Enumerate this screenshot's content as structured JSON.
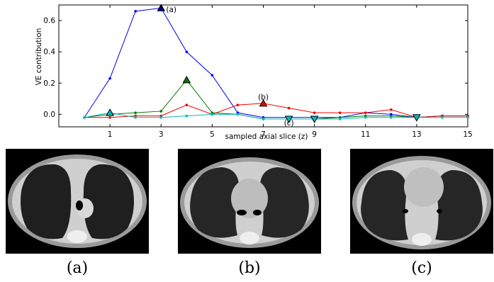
{
  "chart_data": {
    "type": "line",
    "xlabel": "sampled axial slice (z)",
    "ylabel": "VE contribution",
    "xlim": [
      -1,
      15
    ],
    "ylim": [
      -0.08,
      0.7
    ],
    "xticks": [
      1,
      3,
      5,
      7,
      9,
      11,
      13,
      15
    ],
    "yticks": [
      0.0,
      0.2,
      0.4,
      0.6
    ],
    "ytick_labels": [
      "0.0",
      "0.2",
      "0.4",
      "0.6"
    ],
    "x": [
      0,
      1,
      2,
      3,
      4,
      5,
      6,
      7,
      8,
      9,
      10,
      11,
      12,
      13,
      14,
      15
    ],
    "series": [
      {
        "color": "#0000ee",
        "values": [
          -0.02,
          0.23,
          0.66,
          0.68,
          0.4,
          0.25,
          0.01,
          -0.02,
          -0.02,
          -0.02,
          -0.02,
          0.01,
          0.0,
          -0.02,
          -0.01,
          -0.01
        ]
      },
      {
        "color": "#007700",
        "values": [
          -0.02,
          0.0,
          0.01,
          0.02,
          0.22,
          0.01,
          0.0,
          -0.03,
          -0.03,
          -0.03,
          -0.02,
          -0.01,
          -0.01,
          -0.02,
          -0.01,
          -0.01
        ]
      },
      {
        "color": "#ee0000",
        "values": [
          -0.02,
          -0.02,
          -0.01,
          -0.01,
          0.06,
          0.0,
          0.06,
          0.07,
          0.04,
          0.01,
          0.01,
          0.01,
          0.03,
          -0.02,
          -0.01,
          -0.01
        ]
      },
      {
        "color": "#00bbbb",
        "values": [
          -0.02,
          0.01,
          -0.02,
          -0.02,
          -0.01,
          0.0,
          0.0,
          -0.03,
          -0.03,
          -0.03,
          -0.03,
          -0.02,
          -0.02,
          -0.02,
          -0.02,
          -0.02
        ]
      }
    ],
    "markers": [
      {
        "x": 3,
        "y": 0.68,
        "shape": "up",
        "color": "#000080"
      },
      {
        "x": 1,
        "y": 0.01,
        "shape": "up",
        "color": "#00bbbb"
      },
      {
        "x": 4,
        "y": 0.22,
        "shape": "up",
        "color": "#007700"
      },
      {
        "x": 7,
        "y": 0.07,
        "shape": "up",
        "color": "#ee0000"
      },
      {
        "x": 8,
        "y": -0.03,
        "shape": "down",
        "color": "#00bbbb"
      },
      {
        "x": 9,
        "y": -0.03,
        "shape": "down",
        "color": "#00bbbb"
      },
      {
        "x": 13,
        "y": -0.02,
        "shape": "down",
        "color": "#00bbbb"
      }
    ],
    "annotations": [
      {
        "text": "(a)",
        "x": 3.4,
        "y": 0.655
      },
      {
        "text": "(b)",
        "x": 7.0,
        "y": 0.095
      },
      {
        "text": "(c)",
        "x": 8.0,
        "y": -0.07
      }
    ]
  },
  "panels": [
    {
      "caption": "(a)",
      "icon": "ct-lung-slice-upper"
    },
    {
      "caption": "(b)",
      "icon": "ct-lung-slice-middle"
    },
    {
      "caption": "(c)",
      "icon": "ct-lung-slice-lower"
    }
  ]
}
